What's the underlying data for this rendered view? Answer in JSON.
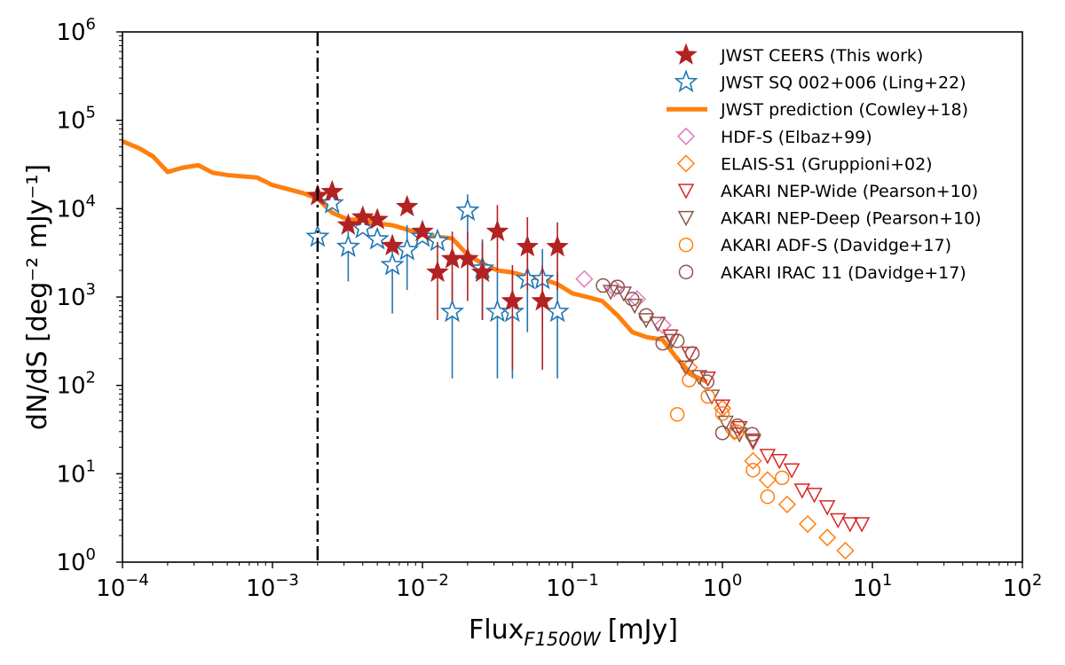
{
  "chart_data": {
    "type": "scatter",
    "xscale": "log",
    "yscale": "log",
    "xlim": [
      0.0001,
      100
    ],
    "ylim": [
      1,
      1000000
    ],
    "xlabel": "Flux",
    "xlabel_sub": "F1500W",
    "xlabel_unit": "[mJy]",
    "ylabel": "dN/dS [deg⁻² mJy⁻¹]",
    "x_ticks": [
      {
        "value": 0.0001,
        "base": "10",
        "exp": "−4"
      },
      {
        "value": 0.001,
        "base": "10",
        "exp": "−3"
      },
      {
        "value": 0.01,
        "base": "10",
        "exp": "−2"
      },
      {
        "value": 0.1,
        "base": "10",
        "exp": "−1"
      },
      {
        "value": 1,
        "base": "10",
        "exp": "0"
      },
      {
        "value": 10,
        "base": "10",
        "exp": "1"
      },
      {
        "value": 100,
        "base": "10",
        "exp": "2"
      }
    ],
    "y_ticks": [
      {
        "value": 1,
        "base": "10",
        "exp": "0"
      },
      {
        "value": 10,
        "base": "10",
        "exp": "1"
      },
      {
        "value": 100,
        "base": "10",
        "exp": "2"
      },
      {
        "value": 1000,
        "base": "10",
        "exp": "3"
      },
      {
        "value": 10000,
        "base": "10",
        "exp": "4"
      },
      {
        "value": 100000,
        "base": "10",
        "exp": "5"
      },
      {
        "value": 1000000,
        "base": "10",
        "exp": "6"
      }
    ],
    "vline": {
      "x": 0.002,
      "style": "dash-dot",
      "color": "#000000"
    },
    "legend_position": "top-right",
    "series": [
      {
        "name": "JWST CEERS (This work)",
        "marker": "star-filled",
        "color": "#b22222",
        "points": [
          {
            "x": 0.002,
            "y": 14000,
            "ylo": null,
            "yhi": null
          },
          {
            "x": 0.0025,
            "y": 15500,
            "ylo": null,
            "yhi": null
          },
          {
            "x": 0.0032,
            "y": 6500,
            "ylo": null,
            "yhi": null
          },
          {
            "x": 0.004,
            "y": 8000,
            "ylo": null,
            "yhi": null
          },
          {
            "x": 0.005,
            "y": 7500,
            "ylo": null,
            "yhi": null
          },
          {
            "x": 0.0063,
            "y": 3800,
            "ylo": null,
            "yhi": null
          },
          {
            "x": 0.0079,
            "y": 10500,
            "ylo": null,
            "yhi": null
          },
          {
            "x": 0.01,
            "y": 5500,
            "ylo": null,
            "yhi": null
          },
          {
            "x": 0.0126,
            "y": 1900,
            "ylo": 550,
            "yhi": 4200
          },
          {
            "x": 0.0158,
            "y": 2700,
            "ylo": 900,
            "yhi": 5500
          },
          {
            "x": 0.02,
            "y": 2700,
            "ylo": 900,
            "yhi": 5500
          },
          {
            "x": 0.0251,
            "y": 1900,
            "ylo": 550,
            "yhi": 4200
          },
          {
            "x": 0.0316,
            "y": 5500,
            "ylo": 2000,
            "yhi": 11000
          },
          {
            "x": 0.0398,
            "y": 900,
            "ylo": 150,
            "yhi": 2300
          },
          {
            "x": 0.0501,
            "y": 3700,
            "ylo": 1200,
            "yhi": 8000
          },
          {
            "x": 0.0631,
            "y": 900,
            "ylo": 150,
            "yhi": 2300
          },
          {
            "x": 0.0794,
            "y": 3700,
            "ylo": 1200,
            "yhi": 7000
          }
        ]
      },
      {
        "name": "JWST SQ 002+006 (Ling+22)",
        "marker": "star-open",
        "color": "#1f77b4",
        "points": [
          {
            "x": 0.002,
            "y": 4800,
            "ylo": null,
            "yhi": null
          },
          {
            "x": 0.0025,
            "y": 11500,
            "ylo": null,
            "yhi": null
          },
          {
            "x": 0.0032,
            "y": 3700,
            "ylo": 1500,
            "yhi": 7000
          },
          {
            "x": 0.004,
            "y": 6000,
            "ylo": null,
            "yhi": null
          },
          {
            "x": 0.005,
            "y": 4500,
            "ylo": null,
            "yhi": null
          },
          {
            "x": 0.0063,
            "y": 2300,
            "ylo": 650,
            "yhi": 5000
          },
          {
            "x": 0.0079,
            "y": 3400,
            "ylo": 1200,
            "yhi": 6500
          },
          {
            "x": 0.01,
            "y": 4800,
            "ylo": null,
            "yhi": null
          },
          {
            "x": 0.0126,
            "y": 4300,
            "ylo": null,
            "yhi": null
          },
          {
            "x": 0.0158,
            "y": 680,
            "ylo": 120,
            "yhi": 1900
          },
          {
            "x": 0.02,
            "y": 9500,
            "ylo": 4500,
            "yhi": 14500
          },
          {
            "x": 0.0251,
            "y": 2100,
            "ylo": 550,
            "yhi": 4500
          },
          {
            "x": 0.0316,
            "y": 680,
            "ylo": 120,
            "yhi": 1900
          },
          {
            "x": 0.0398,
            "y": 680,
            "ylo": 120,
            "yhi": 1900
          },
          {
            "x": 0.0501,
            "y": 1600,
            "ylo": 400,
            "yhi": 3500
          },
          {
            "x": 0.0631,
            "y": 1600,
            "ylo": 400,
            "yhi": 3500
          },
          {
            "x": 0.0794,
            "y": 680,
            "ylo": 120,
            "yhi": 1900
          }
        ]
      },
      {
        "name": "JWST prediction (Cowley+18)",
        "marker": "line",
        "color": "#ff7f0e",
        "points": [
          {
            "x": 0.0001,
            "y": 58000
          },
          {
            "x": 0.00013,
            "y": 48000
          },
          {
            "x": 0.00016,
            "y": 39000
          },
          {
            "x": 0.0002,
            "y": 26000
          },
          {
            "x": 0.00025,
            "y": 29000
          },
          {
            "x": 0.00032,
            "y": 31000
          },
          {
            "x": 0.0004,
            "y": 25500
          },
          {
            "x": 0.0005,
            "y": 24000
          },
          {
            "x": 0.00079,
            "y": 22500
          },
          {
            "x": 0.001,
            "y": 18500
          },
          {
            "x": 0.0016,
            "y": 15000
          },
          {
            "x": 0.002,
            "y": 13000
          },
          {
            "x": 0.0025,
            "y": 9000
          },
          {
            "x": 0.0032,
            "y": 7500
          },
          {
            "x": 0.004,
            "y": 7500
          },
          {
            "x": 0.005,
            "y": 6800
          },
          {
            "x": 0.0063,
            "y": 6500
          },
          {
            "x": 0.0079,
            "y": 5800
          },
          {
            "x": 0.01,
            "y": 5000
          },
          {
            "x": 0.0126,
            "y": 4800
          },
          {
            "x": 0.0158,
            "y": 4600
          },
          {
            "x": 0.02,
            "y": 3000
          },
          {
            "x": 0.0251,
            "y": 2400
          },
          {
            "x": 0.0316,
            "y": 2000
          },
          {
            "x": 0.0398,
            "y": 1900
          },
          {
            "x": 0.0501,
            "y": 1700
          },
          {
            "x": 0.0631,
            "y": 1600
          },
          {
            "x": 0.0794,
            "y": 1400
          },
          {
            "x": 0.1,
            "y": 1100
          },
          {
            "x": 0.126,
            "y": 1000
          },
          {
            "x": 0.158,
            "y": 900
          },
          {
            "x": 0.2,
            "y": 620
          },
          {
            "x": 0.251,
            "y": 400
          },
          {
            "x": 0.316,
            "y": 350
          },
          {
            "x": 0.398,
            "y": 330
          },
          {
            "x": 0.501,
            "y": 200
          },
          {
            "x": 0.631,
            "y": 130
          },
          {
            "x": 0.79,
            "y": 110
          }
        ]
      },
      {
        "name": "HDF-S (Elbaz+99)",
        "marker": "diamond-open",
        "color": "#e377c2",
        "points": [
          {
            "x": 0.12,
            "y": 1600
          },
          {
            "x": 0.19,
            "y": 1250
          },
          {
            "x": 0.27,
            "y": 950
          },
          {
            "x": 0.4,
            "y": 480
          }
        ]
      },
      {
        "name": "ELAIS-S1 (Gruppioni+02)",
        "marker": "diamond-open",
        "color": "#ff7f0e",
        "points": [
          {
            "x": 0.6,
            "y": 160
          },
          {
            "x": 1.0,
            "y": 55
          },
          {
            "x": 1.2,
            "y": 30
          },
          {
            "x": 1.6,
            "y": 14
          },
          {
            "x": 2.0,
            "y": 8.5
          },
          {
            "x": 2.7,
            "y": 4.5
          },
          {
            "x": 3.7,
            "y": 2.7
          },
          {
            "x": 5.0,
            "y": 1.9
          },
          {
            "x": 6.6,
            "y": 1.35
          }
        ]
      },
      {
        "name": "AKARI NEP-Wide (Pearson+10)",
        "marker": "triangle-down-open",
        "color": "#d62728",
        "points": [
          {
            "x": 0.45,
            "y": 360
          },
          {
            "x": 0.6,
            "y": 230
          },
          {
            "x": 0.8,
            "y": 120
          },
          {
            "x": 1.0,
            "y": 58
          },
          {
            "x": 1.3,
            "y": 33
          },
          {
            "x": 1.6,
            "y": 23
          },
          {
            "x": 2.0,
            "y": 16
          },
          {
            "x": 2.4,
            "y": 14
          },
          {
            "x": 2.9,
            "y": 11
          },
          {
            "x": 3.4,
            "y": 6.5
          },
          {
            "x": 4.1,
            "y": 5.8
          },
          {
            "x": 5.0,
            "y": 4.2
          },
          {
            "x": 5.9,
            "y": 3.0
          },
          {
            "x": 7.1,
            "y": 2.7
          },
          {
            "x": 8.5,
            "y": 2.7
          }
        ]
      },
      {
        "name": "AKARI NEP-Deep (Pearson+10)",
        "marker": "triangle-down-open",
        "color": "#8c564b",
        "points": [
          {
            "x": 0.18,
            "y": 1150
          },
          {
            "x": 0.22,
            "y": 1100
          },
          {
            "x": 0.26,
            "y": 800
          },
          {
            "x": 0.31,
            "y": 550
          },
          {
            "x": 0.37,
            "y": 500
          },
          {
            "x": 0.46,
            "y": 320
          },
          {
            "x": 0.57,
            "y": 160
          },
          {
            "x": 0.7,
            "y": 125
          },
          {
            "x": 0.85,
            "y": 75
          },
          {
            "x": 1.05,
            "y": 38
          },
          {
            "x": 1.3,
            "y": 28
          },
          {
            "x": 1.6,
            "y": 24
          }
        ]
      },
      {
        "name": "AKARI ADF-S (Davidge+17)",
        "marker": "circle-open",
        "color": "#ff7f0e",
        "points": [
          {
            "x": 0.5,
            "y": 47
          },
          {
            "x": 0.6,
            "y": 115
          },
          {
            "x": 0.8,
            "y": 75
          },
          {
            "x": 1.0,
            "y": 48
          },
          {
            "x": 1.25,
            "y": 30
          },
          {
            "x": 1.6,
            "y": 11
          },
          {
            "x": 2.0,
            "y": 5.5
          },
          {
            "x": 2.5,
            "y": 9
          }
        ]
      },
      {
        "name": "AKARI IRAC 11 (Davidge+17)",
        "marker": "circle-open",
        "color": "#8c564b",
        "points": [
          {
            "x": 0.16,
            "y": 1350
          },
          {
            "x": 0.2,
            "y": 1300
          },
          {
            "x": 0.25,
            "y": 950
          },
          {
            "x": 0.31,
            "y": 620
          },
          {
            "x": 0.4,
            "y": 300
          },
          {
            "x": 0.5,
            "y": 320
          },
          {
            "x": 0.63,
            "y": 230
          },
          {
            "x": 0.79,
            "y": 110
          },
          {
            "x": 1.0,
            "y": 29
          },
          {
            "x": 1.26,
            "y": 35
          },
          {
            "x": 1.58,
            "y": 28
          }
        ]
      }
    ]
  }
}
